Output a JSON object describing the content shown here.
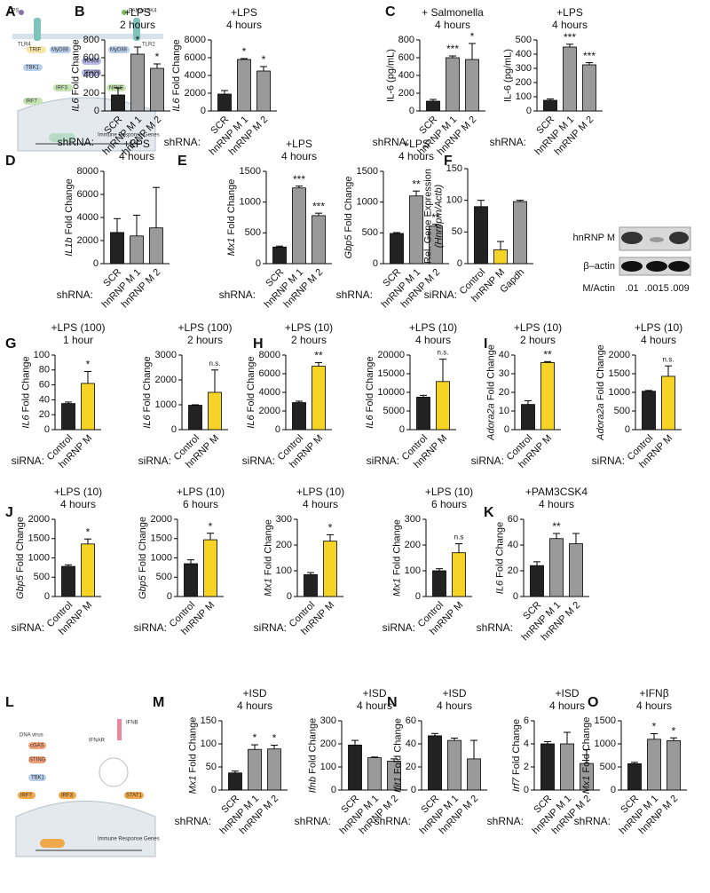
{
  "panel_labels": [
    "A",
    "B",
    "C",
    "D",
    "E",
    "F",
    "G",
    "H",
    "I",
    "J",
    "K",
    "L",
    "M",
    "N",
    "O"
  ],
  "diagrams": {
    "A": {
      "labels": [
        "LPS",
        "PAM3CSK4",
        "TLR4",
        "MyD88",
        "TRIF",
        "MyD88",
        "TLR2",
        "IRAK4",
        "TBK1",
        "TRAF6",
        "IRF3",
        "NFKB",
        "IRF7",
        "Immune Response Genes"
      ]
    },
    "L": {
      "labels": [
        "DNA virus",
        "cGAS",
        "STING",
        "TBK1",
        "IRF3",
        "IRF7",
        "IFNB",
        "IFNAR",
        "STAT1",
        "Immune Response Genes"
      ]
    }
  },
  "blot": {
    "rows": [
      "hnRNP M",
      "β–actin"
    ],
    "ratio_label": "M/Actin",
    "ratios": [
      ".01",
      ".0015",
      ".009"
    ]
  },
  "chart_data": [
    {
      "type": "bar",
      "title": "+LPS",
      "subtitle": "2 hours",
      "ylabel_gene": "IL6",
      "ylabel": "Fold Change",
      "xlabel": "shRNA:",
      "categories": [
        "SCR",
        "hnRNP M 1",
        "hnRNP M 2"
      ],
      "values": [
        180,
        640,
        480
      ],
      "errors": [
        80,
        80,
        50
      ],
      "colors": [
        "#222222",
        "#9a9a9a",
        "#9a9a9a"
      ],
      "annotations": [
        null,
        "*",
        "*"
      ],
      "ylim": [
        0,
        800
      ],
      "yticks": [
        0,
        200,
        400,
        600,
        800
      ]
    },
    {
      "type": "bar",
      "title": "+LPS",
      "subtitle": "4 hours",
      "ylabel_gene": "IL6",
      "ylabel": "Fold Change",
      "xlabel": "shRNA:",
      "categories": [
        "SCR",
        "hnRNP M 1",
        "hnRNP M 2"
      ],
      "values": [
        1900,
        5800,
        4500
      ],
      "errors": [
        400,
        100,
        500
      ],
      "colors": [
        "#222222",
        "#9a9a9a",
        "#9a9a9a"
      ],
      "annotations": [
        null,
        "*",
        "*"
      ],
      "ylim": [
        0,
        8000
      ],
      "yticks": [
        0,
        2000,
        4000,
        6000,
        8000
      ]
    },
    {
      "type": "bar",
      "title": "+ Salmonella",
      "subtitle": "4 hours",
      "ylabel": "IL-6 (pg/mL)",
      "xlabel": "shRNA:",
      "categories": [
        "SCR",
        "hnRNP M 1",
        "hnRNP M 2"
      ],
      "values": [
        110,
        600,
        580
      ],
      "errors": [
        20,
        20,
        180
      ],
      "colors": [
        "#222222",
        "#9a9a9a",
        "#9a9a9a"
      ],
      "annotations": [
        null,
        "***",
        "*"
      ],
      "ylim": [
        0,
        800
      ],
      "yticks": [
        0,
        200,
        400,
        600,
        800
      ]
    },
    {
      "type": "bar",
      "title": "+LPS",
      "subtitle": "4 hours",
      "ylabel": "IL-6 (pg/mL)",
      "xlabel": "shRNA:",
      "categories": [
        "SCR",
        "hnRNP M 1",
        "hnRNP M 2"
      ],
      "values": [
        75,
        450,
        325
      ],
      "errors": [
        10,
        20,
        15
      ],
      "colors": [
        "#222222",
        "#9a9a9a",
        "#9a9a9a"
      ],
      "annotations": [
        null,
        "***",
        "***"
      ],
      "ylim": [
        0,
        500
      ],
      "yticks": [
        0,
        100,
        200,
        300,
        400,
        500
      ]
    },
    {
      "type": "bar",
      "title": "+LPS",
      "subtitle": "4 hours",
      "ylabel_gene": "IL1b",
      "ylabel": "Fold Change",
      "xlabel": "shRNA:",
      "categories": [
        "SCR",
        "hnRNP M 1",
        "hnRNP M 2"
      ],
      "values": [
        2700,
        2400,
        3100
      ],
      "errors": [
        1200,
        1800,
        3500
      ],
      "colors": [
        "#222222",
        "#9a9a9a",
        "#9a9a9a"
      ],
      "ylim": [
        0,
        8000
      ],
      "yticks": [
        0,
        2000,
        4000,
        6000,
        8000
      ]
    },
    {
      "type": "bar",
      "title": "+LPS",
      "subtitle": "4 hours",
      "ylabel_gene": "Mx1",
      "ylabel": "Fold Change",
      "xlabel": "shRNA:",
      "categories": [
        "SCR",
        "hnRNP M 1",
        "hnRNP M 2"
      ],
      "values": [
        270,
        1230,
        780
      ],
      "errors": [
        15,
        30,
        40
      ],
      "colors": [
        "#222222",
        "#9a9a9a",
        "#9a9a9a"
      ],
      "annotations": [
        null,
        "***",
        "***"
      ],
      "ylim": [
        0,
        1500
      ],
      "yticks": [
        0,
        500,
        1000,
        1500
      ]
    },
    {
      "type": "bar",
      "title": "+LPS",
      "subtitle": "4 hours",
      "ylabel_gene": "Gbp5",
      "ylabel": "Fold Change",
      "xlabel": "shRNA:",
      "categories": [
        "SCR",
        "hnRNP M 1",
        "hnRNP M 2"
      ],
      "values": [
        490,
        1100,
        610
      ],
      "errors": [
        15,
        80,
        30
      ],
      "colors": [
        "#222222",
        "#9a9a9a",
        "#9a9a9a"
      ],
      "annotations": [
        null,
        "**",
        "**"
      ],
      "ylim": [
        0,
        1500
      ],
      "yticks": [
        0,
        500,
        1000,
        1500
      ]
    },
    {
      "type": "bar",
      "ylabel": "Rel. Gene Expression",
      "ylabel_line2": "(Hnrnpm/Actb)",
      "xlabel": "siRNA:",
      "categories": [
        "Control",
        "hnRNP M",
        "Gapdh"
      ],
      "values": [
        90,
        22,
        98
      ],
      "errors": [
        10,
        13,
        2
      ],
      "colors": [
        "#222222",
        "#f5d327",
        "#9a9a9a"
      ],
      "ylim": [
        0,
        150
      ],
      "yticks": [
        0,
        50,
        100,
        150
      ]
    },
    {
      "type": "bar",
      "title": "+LPS (100)",
      "subtitle": "1 hour",
      "ylabel_gene": "IL6",
      "ylabel": "Fold Change",
      "xlabel": "siRNA:",
      "categories": [
        "Control",
        "hnRNP M"
      ],
      "values": [
        35,
        62
      ],
      "errors": [
        2,
        16
      ],
      "colors": [
        "#222222",
        "#f5d327"
      ],
      "annotations": [
        null,
        "*"
      ],
      "ylim": [
        0,
        100
      ],
      "yticks": [
        0,
        20,
        40,
        60,
        80,
        100
      ]
    },
    {
      "type": "bar",
      "title": "+LPS (100)",
      "subtitle": "2 hours",
      "ylabel_gene": "IL6",
      "ylabel": "Fold Change",
      "xlabel": "siRNA:",
      "categories": [
        "Control",
        "hnRNP M"
      ],
      "values": [
        980,
        1500
      ],
      "errors": [
        20,
        900
      ],
      "colors": [
        "#222222",
        "#f5d327"
      ],
      "annotations": [
        null,
        "n.s."
      ],
      "ylim": [
        0,
        3000
      ],
      "yticks": [
        0,
        1000,
        2000,
        3000
      ]
    },
    {
      "type": "bar",
      "title": "+LPS (10)",
      "subtitle": "2 hours",
      "ylabel_gene": "IL6",
      "ylabel": "Fold Change",
      "xlabel": "siRNA:",
      "categories": [
        "Control",
        "hnRNP M"
      ],
      "values": [
        2900,
        6800
      ],
      "errors": [
        150,
        400
      ],
      "colors": [
        "#222222",
        "#f5d327"
      ],
      "annotations": [
        null,
        "**"
      ],
      "ylim": [
        0,
        8000
      ],
      "yticks": [
        0,
        2000,
        4000,
        6000,
        8000
      ]
    },
    {
      "type": "bar",
      "title": "+LPS (10)",
      "subtitle": "4 hours",
      "ylabel_gene": "IL6",
      "ylabel": "Fold Change",
      "xlabel": "siRNA:",
      "categories": [
        "Control",
        "hnRNP M"
      ],
      "values": [
        8700,
        12900
      ],
      "errors": [
        500,
        6000
      ],
      "colors": [
        "#222222",
        "#f5d327"
      ],
      "annotations": [
        null,
        "n.s."
      ],
      "ylim": [
        0,
        20000
      ],
      "yticks": [
        0,
        5000,
        10000,
        15000,
        20000
      ]
    },
    {
      "type": "bar",
      "title": "+LPS (10)",
      "subtitle": "2 hours",
      "ylabel_gene": "Adora2a",
      "ylabel": "Fold Change",
      "xlabel": "siRNA:",
      "categories": [
        "Control",
        "hnRNP M"
      ],
      "values": [
        13.5,
        36
      ],
      "errors": [
        2,
        0.5
      ],
      "colors": [
        "#222222",
        "#f5d327"
      ],
      "annotations": [
        null,
        "**"
      ],
      "ylim": [
        0,
        40
      ],
      "yticks": [
        0,
        10,
        20,
        30,
        40
      ]
    },
    {
      "type": "bar",
      "title": "+LPS (10)",
      "subtitle": "4 hours",
      "ylabel_gene": "Adora2a",
      "ylabel": "Fold Change",
      "xlabel": "siRNA:",
      "categories": [
        "Control",
        "hnRNP M"
      ],
      "values": [
        1030,
        1430
      ],
      "errors": [
        20,
        280
      ],
      "colors": [
        "#222222",
        "#f5d327"
      ],
      "annotations": [
        null,
        "n.s."
      ],
      "ylim": [
        0,
        2000
      ],
      "yticks": [
        0,
        500,
        1000,
        1500,
        2000
      ]
    },
    {
      "type": "bar",
      "title": "+LPS (10)",
      "subtitle": "4 hours",
      "ylabel_gene": "Gbp5",
      "ylabel": "Fold Change",
      "xlabel": "siRNA:",
      "categories": [
        "Control",
        "hnRNP M"
      ],
      "values": [
        780,
        1360
      ],
      "errors": [
        40,
        130
      ],
      "colors": [
        "#222222",
        "#f5d327"
      ],
      "annotations": [
        null,
        "*"
      ],
      "ylim": [
        0,
        2000
      ],
      "yticks": [
        0,
        500,
        1000,
        1500,
        2000
      ]
    },
    {
      "type": "bar",
      "title": "+LPS (10)",
      "subtitle": "6 hours",
      "ylabel_gene": "Gbp5",
      "ylabel": "Fold Change",
      "xlabel": "siRNA:",
      "categories": [
        "Control",
        "hnRNP M"
      ],
      "values": [
        850,
        1470
      ],
      "errors": [
        100,
        170
      ],
      "colors": [
        "#222222",
        "#f5d327"
      ],
      "annotations": [
        null,
        "*"
      ],
      "ylim": [
        0,
        2000
      ],
      "yticks": [
        0,
        500,
        1000,
        1500,
        2000
      ]
    },
    {
      "type": "bar",
      "title": "+LPS (10)",
      "subtitle": "4 hours",
      "ylabel_gene": "Mx1",
      "ylabel": "Fold Change",
      "xlabel": "siRNA:",
      "categories": [
        "Control",
        "hnRNP M"
      ],
      "values": [
        85,
        215
      ],
      "errors": [
        8,
        25
      ],
      "colors": [
        "#222222",
        "#f5d327"
      ],
      "annotations": [
        null,
        "*"
      ],
      "ylim": [
        0,
        300
      ],
      "yticks": [
        0,
        100,
        200,
        300
      ]
    },
    {
      "type": "bar",
      "title": "+LPS (10)",
      "subtitle": "6 hours",
      "ylabel_gene": "Mx1",
      "ylabel": "Fold Change",
      "xlabel": "siRNA:",
      "categories": [
        "Control",
        "hnRNP M"
      ],
      "values": [
        100,
        170
      ],
      "errors": [
        8,
        35
      ],
      "colors": [
        "#222222",
        "#f5d327"
      ],
      "annotations": [
        null,
        "n.s"
      ],
      "ylim": [
        0,
        300
      ],
      "yticks": [
        0,
        100,
        200,
        300
      ]
    },
    {
      "type": "bar",
      "title": "+PAM3CSK4",
      "subtitle": "4 hours",
      "ylabel_gene": "IL6",
      "ylabel": "Fold Change",
      "xlabel": "shRNA:",
      "categories": [
        "SCR",
        "hnRNP M 1",
        "hnRNP M 2"
      ],
      "values": [
        24,
        45,
        41
      ],
      "errors": [
        3,
        4,
        8
      ],
      "colors": [
        "#222222",
        "#9a9a9a",
        "#9a9a9a"
      ],
      "annotations": [
        null,
        "**",
        null
      ],
      "ylim": [
        0,
        60
      ],
      "yticks": [
        0,
        20,
        40,
        60
      ]
    },
    {
      "type": "bar",
      "title": "+ISD",
      "subtitle": "4 hours",
      "ylabel_gene": "Mx1",
      "ylabel": "Fold Change",
      "xlabel": "shRNA:",
      "categories": [
        "SCR",
        "hnRNP M 1",
        "hnRNP M 2"
      ],
      "values": [
        37,
        88,
        89
      ],
      "errors": [
        4,
        10,
        8
      ],
      "colors": [
        "#222222",
        "#9a9a9a",
        "#9a9a9a"
      ],
      "annotations": [
        null,
        "*",
        "*"
      ],
      "ylim": [
        0,
        150
      ],
      "yticks": [
        0,
        50,
        100,
        150
      ]
    },
    {
      "type": "bar",
      "title": "+ISD",
      "subtitle": "4 hours",
      "ylabel_gene": "Ifnb",
      "ylabel": "Fold Change",
      "xlabel": "shRNA:",
      "categories": [
        "SCR",
        "hnRNP M 1",
        "hnRNP M 2"
      ],
      "values": [
        195,
        140,
        125
      ],
      "errors": [
        20,
        3,
        10
      ],
      "colors": [
        "#222222",
        "#9a9a9a",
        "#9a9a9a"
      ],
      "ylim": [
        0,
        300
      ],
      "yticks": [
        0,
        100,
        200,
        300
      ]
    },
    {
      "type": "bar",
      "title": "+ISD",
      "subtitle": "4 hours",
      "ylabel_gene": "Ifit1",
      "ylabel": "Fold Change",
      "xlabel": "shRNA:",
      "categories": [
        "SCR",
        "hnRNP M 1",
        "hnRNP M 2"
      ],
      "values": [
        47,
        43,
        27
      ],
      "errors": [
        2,
        2,
        16
      ],
      "colors": [
        "#222222",
        "#9a9a9a",
        "#9a9a9a"
      ],
      "ylim": [
        0,
        60
      ],
      "yticks": [
        0,
        20,
        40,
        60
      ]
    },
    {
      "type": "bar",
      "title": "+ISD",
      "subtitle": "4 hours",
      "ylabel_gene": "Irf7",
      "ylabel": "Fold Change",
      "xlabel": "shRNA:",
      "categories": [
        "SCR",
        "hnRNP M 1",
        "hnRNP M 2"
      ],
      "values": [
        4.0,
        4.0,
        2.3
      ],
      "errors": [
        0.2,
        1.0,
        1.2
      ],
      "colors": [
        "#222222",
        "#9a9a9a",
        "#9a9a9a"
      ],
      "ylim": [
        0,
        6
      ],
      "yticks": [
        0,
        2,
        4,
        6
      ]
    },
    {
      "type": "bar",
      "title": "+IFNβ",
      "subtitle": "4 hours",
      "ylabel_gene": "Mx1",
      "ylabel": "Fold Change",
      "xlabel": "shRNA:",
      "categories": [
        "SCR",
        "hnRNP M 1",
        "hnRNP M 2"
      ],
      "values": [
        570,
        1100,
        1070
      ],
      "errors": [
        30,
        120,
        60
      ],
      "colors": [
        "#222222",
        "#9a9a9a",
        "#9a9a9a"
      ],
      "annotations": [
        null,
        "*",
        "*"
      ],
      "ylim": [
        0,
        1500
      ],
      "yticks": [
        0,
        500,
        1000,
        1500
      ]
    }
  ]
}
